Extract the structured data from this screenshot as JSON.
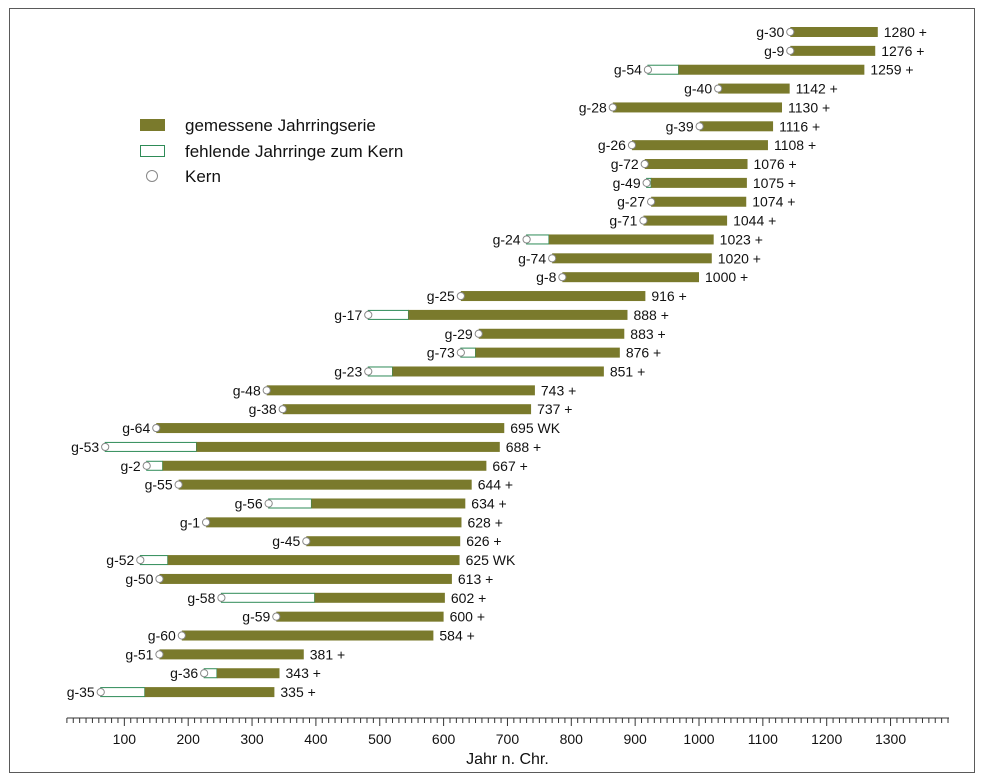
{
  "colors": {
    "measured": "#7a7a2c",
    "missing_fill": "#ffffff",
    "missing_stroke": "#2e8b57",
    "pith_stroke": "#888888",
    "frame": "#5a5a5a",
    "axis": "#333333"
  },
  "chart_data": {
    "type": "bar",
    "orientation": "horizontal",
    "xlabel": "Jahr n. Chr.",
    "xlim": [
      0,
      1390
    ],
    "xticks": [
      100,
      200,
      300,
      400,
      500,
      600,
      700,
      800,
      900,
      1000,
      1100,
      1200,
      1300
    ],
    "minor_tick_step": 10,
    "grid": false,
    "legend": {
      "placement": "top-left",
      "entries": [
        {
          "kind": "measured",
          "label": "gemessene Jahrringserie"
        },
        {
          "kind": "missing",
          "label": "fehlende Jahrringe zum Kern"
        },
        {
          "kind": "pith",
          "label": "Kern"
        }
      ]
    },
    "series": [
      {
        "id": "g-30",
        "pith": 1143,
        "measured_start": 1143,
        "end": 1280,
        "end_label": "1280 +"
      },
      {
        "id": "g-9",
        "pith": 1143,
        "measured_start": 1143,
        "end": 1276,
        "end_label": "1276 +"
      },
      {
        "id": "g-54",
        "pith": 920,
        "measured_start": 968,
        "end": 1259,
        "end_label": "1259 +"
      },
      {
        "id": "g-40",
        "pith": 1030,
        "measured_start": 1030,
        "end": 1142,
        "end_label": "1142 +"
      },
      {
        "id": "g-28",
        "pith": 865,
        "measured_start": 865,
        "end": 1130,
        "end_label": "1130 +"
      },
      {
        "id": "g-39",
        "pith": 1001,
        "measured_start": 1001,
        "end": 1116,
        "end_label": "1116 +"
      },
      {
        "id": "g-26",
        "pith": 895,
        "measured_start": 895,
        "end": 1108,
        "end_label": "1108 +"
      },
      {
        "id": "g-72",
        "pith": 915,
        "measured_start": 915,
        "end": 1076,
        "end_label": "1076 +"
      },
      {
        "id": "g-49",
        "pith": 918,
        "measured_start": 925,
        "end": 1075,
        "end_label": "1075 +"
      },
      {
        "id": "g-27",
        "pith": 925,
        "measured_start": 925,
        "end": 1074,
        "end_label": "1074 +"
      },
      {
        "id": "g-71",
        "pith": 913,
        "measured_start": 913,
        "end": 1044,
        "end_label": "1044 +"
      },
      {
        "id": "g-24",
        "pith": 730,
        "measured_start": 765,
        "end": 1023,
        "end_label": "1023 +"
      },
      {
        "id": "g-74",
        "pith": 770,
        "measured_start": 770,
        "end": 1020,
        "end_label": "1020 +"
      },
      {
        "id": "g-8",
        "pith": 786,
        "measured_start": 786,
        "end": 1000,
        "end_label": "1000 +"
      },
      {
        "id": "g-25",
        "pith": 627,
        "measured_start": 627,
        "end": 916,
        "end_label": "916 +"
      },
      {
        "id": "g-17",
        "pith": 482,
        "measured_start": 545,
        "end": 888,
        "end_label": "888 +"
      },
      {
        "id": "g-29",
        "pith": 655,
        "measured_start": 655,
        "end": 883,
        "end_label": "883 +"
      },
      {
        "id": "g-73",
        "pith": 627,
        "measured_start": 650,
        "end": 876,
        "end_label": "876 +"
      },
      {
        "id": "g-23",
        "pith": 482,
        "measured_start": 520,
        "end": 851,
        "end_label": "851 +"
      },
      {
        "id": "g-48",
        "pith": 323,
        "measured_start": 323,
        "end": 743,
        "end_label": "743 +"
      },
      {
        "id": "g-38",
        "pith": 348,
        "measured_start": 348,
        "end": 737,
        "end_label": "737 +"
      },
      {
        "id": "g-64",
        "pith": 150,
        "measured_start": 150,
        "end": 695,
        "end_label": "695 WK"
      },
      {
        "id": "g-53",
        "pith": 70,
        "measured_start": 213,
        "end": 688,
        "end_label": "688 +"
      },
      {
        "id": "g-2",
        "pith": 135,
        "measured_start": 160,
        "end": 667,
        "end_label": "667 +"
      },
      {
        "id": "g-55",
        "pith": 185,
        "measured_start": 185,
        "end": 644,
        "end_label": "644 +"
      },
      {
        "id": "g-56",
        "pith": 326,
        "measured_start": 393,
        "end": 634,
        "end_label": "634 +"
      },
      {
        "id": "g-1",
        "pith": 228,
        "measured_start": 228,
        "end": 628,
        "end_label": "628 +"
      },
      {
        "id": "g-45",
        "pith": 385,
        "measured_start": 385,
        "end": 626,
        "end_label": "626 +"
      },
      {
        "id": "g-52",
        "pith": 125,
        "measured_start": 168,
        "end": 625,
        "end_label": "625 WK"
      },
      {
        "id": "g-50",
        "pith": 155,
        "measured_start": 155,
        "end": 613,
        "end_label": "613 +"
      },
      {
        "id": "g-58",
        "pith": 252,
        "measured_start": 398,
        "end": 602,
        "end_label": "602 +"
      },
      {
        "id": "g-59",
        "pith": 338,
        "measured_start": 338,
        "end": 600,
        "end_label": "600 +"
      },
      {
        "id": "g-60",
        "pith": 190,
        "measured_start": 190,
        "end": 584,
        "end_label": "584 +"
      },
      {
        "id": "g-51",
        "pith": 155,
        "measured_start": 155,
        "end": 381,
        "end_label": "381 +"
      },
      {
        "id": "g-36",
        "pith": 225,
        "measured_start": 245,
        "end": 343,
        "end_label": "343 +"
      },
      {
        "id": "g-35",
        "pith": 63,
        "measured_start": 132,
        "end": 335,
        "end_label": "335 +"
      }
    ]
  }
}
